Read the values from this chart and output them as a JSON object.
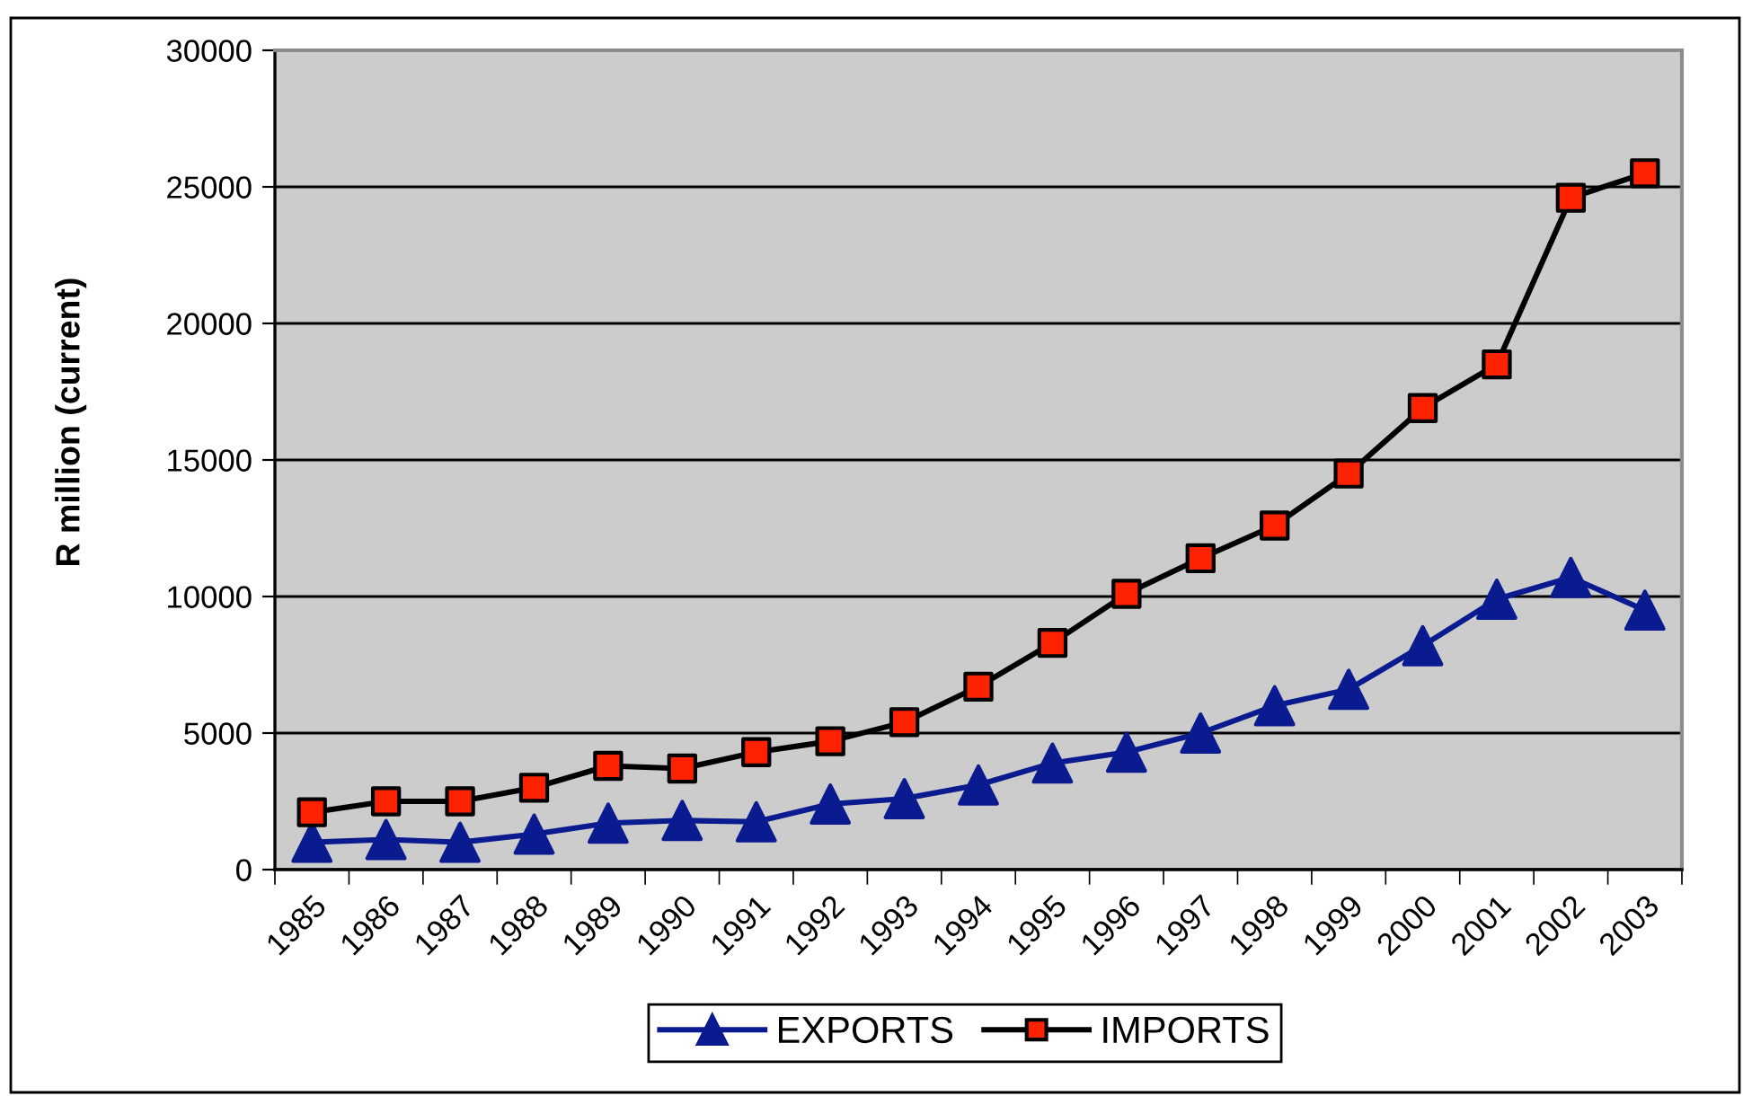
{
  "chart_data": {
    "type": "line",
    "ylabel": "R million (current)",
    "categories": [
      "1985",
      "1986",
      "1987",
      "1988",
      "1989",
      "1990",
      "1991",
      "1992",
      "1993",
      "1994",
      "1995",
      "1996",
      "1997",
      "1998",
      "1999",
      "2000",
      "2001",
      "2002",
      "2003"
    ],
    "series": [
      {
        "name": "EXPORTS",
        "color": "#0a1a8f",
        "marker": "triangle",
        "values": [
          1000,
          1100,
          1000,
          1300,
          1700,
          1800,
          1750,
          2400,
          2600,
          3100,
          3900,
          4300,
          5000,
          6000,
          6600,
          8200,
          9900,
          10700,
          9500
        ]
      },
      {
        "name": "IMPORTS",
        "color": "#000000",
        "marker": "square",
        "colors": [
          "#ff2200",
          "#ff2200",
          "#ff2200",
          "#ff2200",
          "#ff2200",
          "#ff2200",
          "#ff2200",
          "#ff2200",
          "#ff2200",
          "#ff2200",
          "#ff2200",
          "#ff2200",
          "#ff2200",
          "#ff2200",
          "#ff2200",
          "#ff2200",
          "#ff2200",
          "#ff2200",
          "#ff2200"
        ],
        "values": [
          2100,
          2500,
          2500,
          3000,
          3800,
          3700,
          4300,
          4700,
          5400,
          6700,
          8300,
          10100,
          11400,
          12600,
          14500,
          16900,
          18500,
          24600,
          25500
        ]
      }
    ],
    "ylim": [
      0,
      30000
    ],
    "yticks": [
      0,
      5000,
      10000,
      15000,
      20000,
      25000,
      30000
    ],
    "grid": "y",
    "legend": "bottom"
  }
}
